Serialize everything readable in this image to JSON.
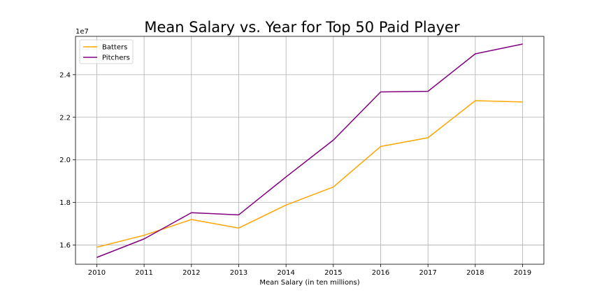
{
  "chart_data": {
    "type": "line",
    "title": "Mean Salary vs. Year for Top 50 Paid Player",
    "xlabel": "Mean Salary (in ten millions)",
    "ylabel": "",
    "y_offset_label": "1e7",
    "x": [
      2010,
      2011,
      2012,
      2013,
      2014,
      2015,
      2016,
      2017,
      2018,
      2019
    ],
    "x_tick_labels": [
      "2010",
      "2011",
      "2012",
      "2013",
      "2014",
      "2015",
      "2016",
      "2017",
      "2018",
      "2019"
    ],
    "y_ticks": [
      16000000,
      18000000,
      20000000,
      22000000,
      24000000
    ],
    "y_tick_labels": [
      "1.6",
      "1.8",
      "2.0",
      "2.2",
      "2.4"
    ],
    "xlim": [
      2009.55,
      2019.45
    ],
    "ylim": [
      15100000,
      25800000
    ],
    "grid": true,
    "legend_position": "top-left",
    "series": [
      {
        "name": "Batters",
        "color": "#ffa500",
        "values": [
          15900000,
          16460000,
          17200000,
          16800000,
          17880000,
          18730000,
          20630000,
          21040000,
          22780000,
          22720000
        ]
      },
      {
        "name": "Pitchers",
        "color": "#800080",
        "values": [
          15420000,
          16290000,
          17520000,
          17420000,
          19200000,
          20930000,
          23190000,
          23220000,
          24980000,
          25440000
        ]
      }
    ]
  }
}
